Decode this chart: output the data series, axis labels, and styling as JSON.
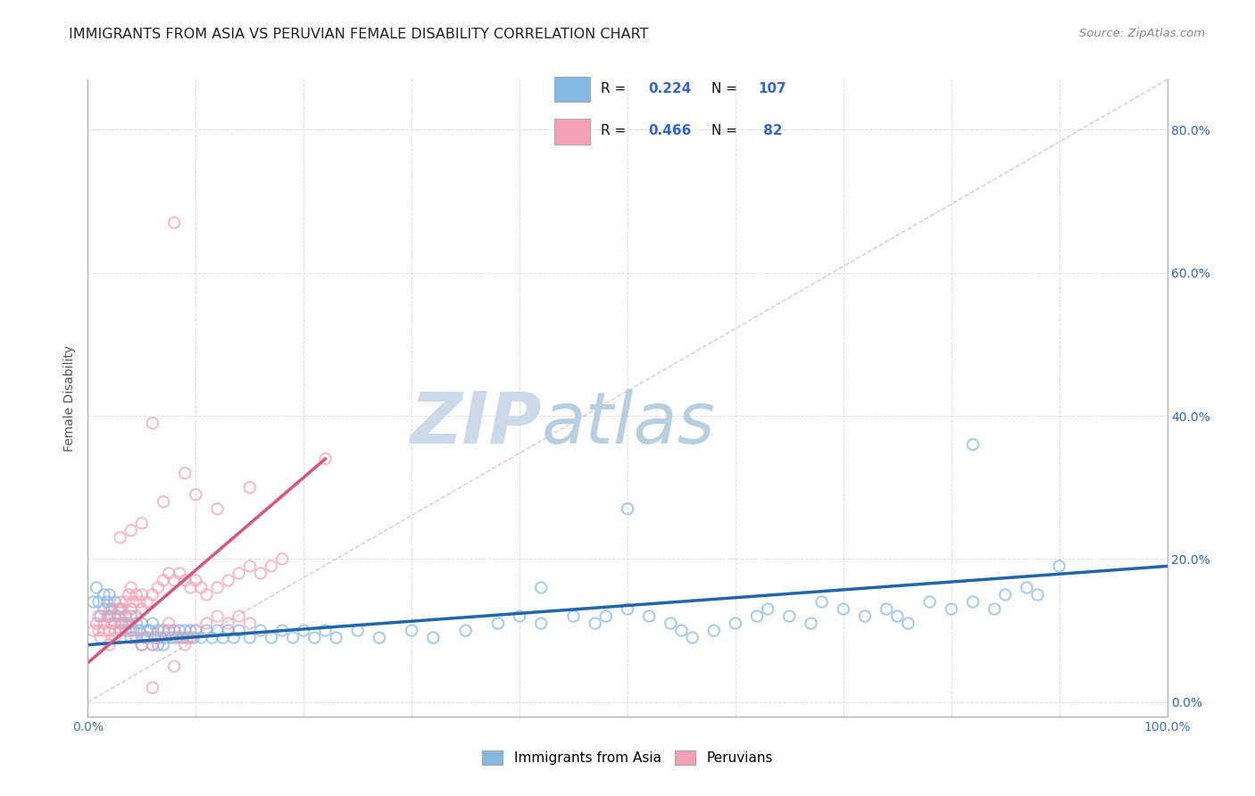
{
  "title": "IMMIGRANTS FROM ASIA VS PERUVIAN FEMALE DISABILITY CORRELATION CHART",
  "source": "Source: ZipAtlas.com",
  "ylabel": "Female Disability",
  "x_min": 0.0,
  "x_max": 1.0,
  "y_min": -0.02,
  "y_max": 0.87,
  "x_ticks": [
    0.0,
    0.1,
    0.2,
    0.3,
    0.4,
    0.5,
    0.6,
    0.7,
    0.8,
    0.9,
    1.0
  ],
  "x_tick_labels_show": [
    "0.0%",
    "",
    "",
    "",
    "",
    "",
    "",
    "",
    "",
    "",
    "100.0%"
  ],
  "y_ticks": [
    0.0,
    0.2,
    0.4,
    0.6,
    0.8
  ],
  "y_tick_labels": [
    "0.0%",
    "20.0%",
    "40.0%",
    "60.0%",
    "80.0%"
  ],
  "blue_dot_color": "#85b8e0",
  "pink_dot_color": "#f4a0b5",
  "blue_line_color": "#2166ac",
  "pink_line_color": "#d9547e",
  "diag_line_color": "#cccccc",
  "watermark_color_zip": "#ccd9e8",
  "watermark_color_atlas": "#b8cfe0",
  "legend_R1": "0.224",
  "legend_N1": "107",
  "legend_R2": "0.466",
  "legend_N2": "82",
  "legend_label1": "Immigrants from Asia",
  "legend_label2": "Peruvians",
  "grid_color": "#dddddd",
  "blue_scatter_x": [
    0.005,
    0.008,
    0.01,
    0.012,
    0.015,
    0.015,
    0.018,
    0.02,
    0.02,
    0.022,
    0.025,
    0.025,
    0.028,
    0.03,
    0.03,
    0.032,
    0.035,
    0.035,
    0.038,
    0.04,
    0.04,
    0.042,
    0.045,
    0.045,
    0.048,
    0.05,
    0.05,
    0.052,
    0.055,
    0.055,
    0.058,
    0.06,
    0.06,
    0.062,
    0.065,
    0.065,
    0.068,
    0.07,
    0.07,
    0.072,
    0.075,
    0.078,
    0.08,
    0.082,
    0.085,
    0.088,
    0.09,
    0.092,
    0.095,
    0.098,
    0.1,
    0.105,
    0.11,
    0.115,
    0.12,
    0.125,
    0.13,
    0.135,
    0.14,
    0.15,
    0.16,
    0.17,
    0.18,
    0.19,
    0.2,
    0.21,
    0.22,
    0.23,
    0.25,
    0.27,
    0.3,
    0.32,
    0.35,
    0.38,
    0.4,
    0.42,
    0.45,
    0.47,
    0.48,
    0.5,
    0.52,
    0.54,
    0.55,
    0.56,
    0.58,
    0.6,
    0.62,
    0.63,
    0.65,
    0.67,
    0.68,
    0.7,
    0.72,
    0.74,
    0.75,
    0.76,
    0.78,
    0.8,
    0.82,
    0.84,
    0.85,
    0.87,
    0.88,
    0.9,
    0.42,
    0.5,
    0.82
  ],
  "blue_scatter_y": [
    0.14,
    0.16,
    0.14,
    0.12,
    0.15,
    0.13,
    0.14,
    0.15,
    0.12,
    0.13,
    0.14,
    0.11,
    0.12,
    0.13,
    0.1,
    0.11,
    0.12,
    0.1,
    0.11,
    0.12,
    0.09,
    0.1,
    0.11,
    0.09,
    0.1,
    0.11,
    0.08,
    0.09,
    0.1,
    0.09,
    0.1,
    0.11,
    0.08,
    0.09,
    0.1,
    0.08,
    0.09,
    0.1,
    0.08,
    0.09,
    0.1,
    0.09,
    0.1,
    0.09,
    0.1,
    0.09,
    0.1,
    0.09,
    0.1,
    0.09,
    0.1,
    0.09,
    0.1,
    0.09,
    0.1,
    0.09,
    0.1,
    0.09,
    0.1,
    0.09,
    0.1,
    0.09,
    0.1,
    0.09,
    0.1,
    0.09,
    0.1,
    0.09,
    0.1,
    0.09,
    0.1,
    0.09,
    0.1,
    0.11,
    0.12,
    0.11,
    0.12,
    0.11,
    0.12,
    0.13,
    0.12,
    0.11,
    0.1,
    0.09,
    0.1,
    0.11,
    0.12,
    0.13,
    0.12,
    0.11,
    0.14,
    0.13,
    0.12,
    0.13,
    0.12,
    0.11,
    0.14,
    0.13,
    0.14,
    0.13,
    0.15,
    0.16,
    0.15,
    0.19,
    0.16,
    0.27,
    0.36
  ],
  "pink_scatter_x": [
    0.005,
    0.008,
    0.01,
    0.01,
    0.012,
    0.015,
    0.015,
    0.018,
    0.02,
    0.02,
    0.022,
    0.025,
    0.025,
    0.028,
    0.03,
    0.03,
    0.032,
    0.035,
    0.035,
    0.038,
    0.04,
    0.04,
    0.042,
    0.045,
    0.045,
    0.048,
    0.05,
    0.05,
    0.055,
    0.06,
    0.065,
    0.07,
    0.075,
    0.08,
    0.085,
    0.09,
    0.095,
    0.1,
    0.105,
    0.11,
    0.12,
    0.13,
    0.14,
    0.15,
    0.16,
    0.17,
    0.18,
    0.02,
    0.025,
    0.03,
    0.035,
    0.04,
    0.045,
    0.05,
    0.055,
    0.06,
    0.065,
    0.07,
    0.075,
    0.08,
    0.085,
    0.09,
    0.095,
    0.1,
    0.11,
    0.12,
    0.13,
    0.14,
    0.15,
    0.08,
    0.15,
    0.07,
    0.1,
    0.12,
    0.03,
    0.04,
    0.05,
    0.09,
    0.22,
    0.06,
    0.06,
    0.08
  ],
  "pink_scatter_y": [
    0.1,
    0.11,
    0.12,
    0.1,
    0.09,
    0.11,
    0.1,
    0.12,
    0.13,
    0.1,
    0.11,
    0.12,
    0.1,
    0.13,
    0.14,
    0.11,
    0.13,
    0.14,
    0.12,
    0.15,
    0.16,
    0.13,
    0.14,
    0.15,
    0.12,
    0.14,
    0.15,
    0.13,
    0.14,
    0.15,
    0.16,
    0.17,
    0.18,
    0.17,
    0.18,
    0.17,
    0.16,
    0.17,
    0.16,
    0.15,
    0.16,
    0.17,
    0.18,
    0.19,
    0.18,
    0.19,
    0.2,
    0.08,
    0.09,
    0.1,
    0.11,
    0.1,
    0.09,
    0.08,
    0.09,
    0.08,
    0.09,
    0.1,
    0.11,
    0.1,
    0.09,
    0.08,
    0.09,
    0.1,
    0.11,
    0.12,
    0.11,
    0.12,
    0.11,
    0.05,
    0.3,
    0.28,
    0.29,
    0.27,
    0.23,
    0.24,
    0.25,
    0.32,
    0.34,
    0.02,
    0.39,
    0.67
  ],
  "blue_line_x": [
    0.0,
    1.0
  ],
  "blue_line_y": [
    0.08,
    0.19
  ],
  "pink_line_x": [
    0.0,
    0.22
  ],
  "pink_line_y": [
    0.055,
    0.34
  ],
  "diag_line_x": [
    0.0,
    1.0
  ],
  "diag_line_y": [
    0.0,
    0.87
  ]
}
